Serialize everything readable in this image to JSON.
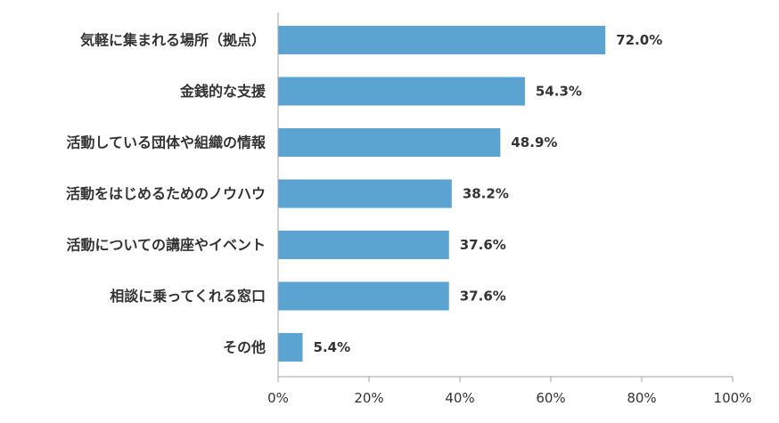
{
  "chart_data": {
    "type": "bar",
    "orientation": "horizontal",
    "categories": [
      "気軽に集まれる場所（拠点）",
      "金銭的な支援",
      "活動している団体や組織の情報",
      "活動をはじめるためのノウハウ",
      "活動についての講座やイベント",
      "相談に乗ってくれる窓口",
      "その他"
    ],
    "values": [
      72.0,
      54.3,
      48.9,
      38.2,
      37.6,
      37.6,
      5.4
    ],
    "value_labels": [
      "72.0%",
      "54.3%",
      "48.9%",
      "38.2%",
      "37.6%",
      "37.6%",
      "5.4%"
    ],
    "xlim": [
      0,
      100
    ],
    "x_ticks": [
      0,
      20,
      40,
      60,
      80,
      100
    ],
    "x_tick_labels": [
      "0%",
      "20%",
      "40%",
      "60%",
      "80%",
      "100%"
    ],
    "grid": false,
    "legend": "none",
    "bar_color": "#5ba3d0",
    "axis_color": "#a6a6a6",
    "text_color": "#333333"
  }
}
